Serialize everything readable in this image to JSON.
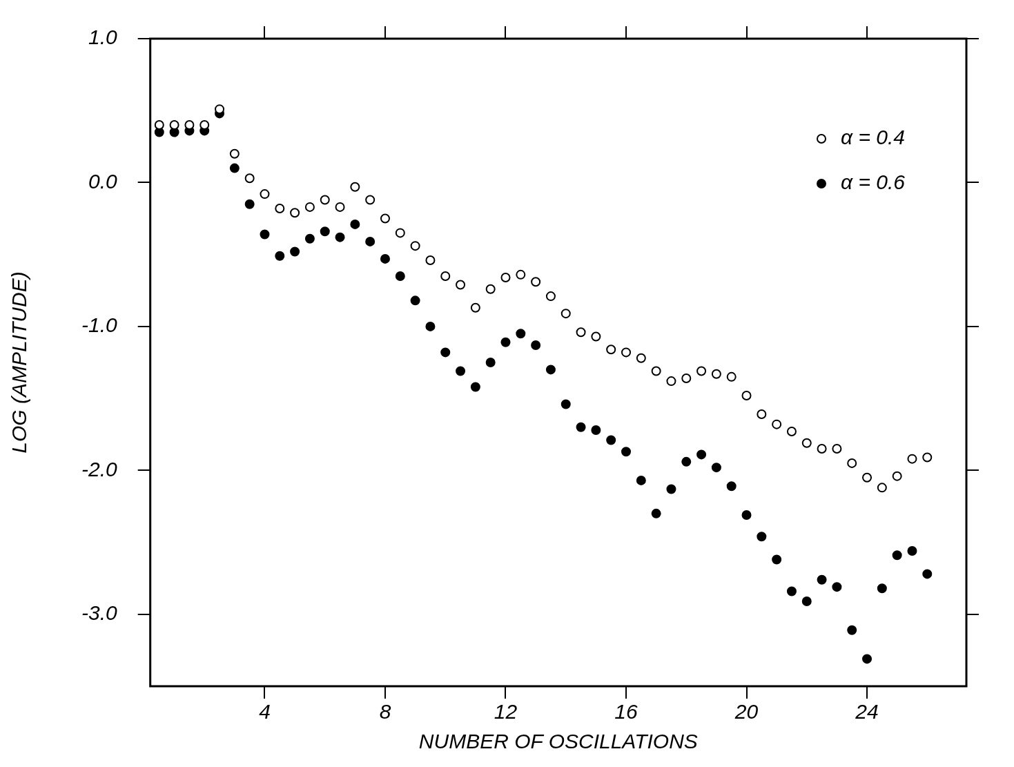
{
  "chart_data": {
    "type": "scatter",
    "xlabel": "NUMBER OF OSCILLATIONS",
    "ylabel": "LOG (AMPLITUDE)",
    "x": [
      0.5,
      1,
      1.5,
      2,
      2.5,
      3,
      3.5,
      4,
      4.5,
      5,
      5.5,
      6,
      6.5,
      7,
      7.5,
      8,
      8.5,
      9,
      9.5,
      10,
      10.5,
      11,
      11.5,
      12,
      12.5,
      13,
      13.5,
      14,
      14.5,
      15,
      15.5,
      16,
      16.5,
      17,
      17.5,
      18,
      18.5,
      19,
      19.5,
      20,
      20.5,
      21,
      21.5,
      22,
      22.5,
      23,
      23.5,
      24,
      24.5,
      25,
      25.5,
      26
    ],
    "series": [
      {
        "name": "α = 0.4",
        "color": "#000000",
        "values": [
          0.4,
          0.4,
          0.4,
          0.4,
          0.51,
          0.2,
          0.03,
          -0.08,
          -0.18,
          -0.21,
          -0.17,
          -0.12,
          -0.17,
          -0.03,
          -0.12,
          -0.25,
          -0.35,
          -0.44,
          -0.54,
          -0.65,
          -0.71,
          -0.87,
          -0.74,
          -0.66,
          -0.64,
          -0.69,
          -0.79,
          -0.91,
          -1.04,
          -1.07,
          -1.16,
          -1.18,
          -1.22,
          -1.31,
          -1.38,
          -1.36,
          -1.31,
          -1.33,
          -1.35,
          -1.48,
          -1.61,
          -1.68,
          -1.73,
          -1.81,
          -1.85,
          -1.85,
          -1.95,
          -2.05,
          -2.12,
          -2.04,
          -1.92,
          -1.91
        ]
      },
      {
        "name": "α = 0.6",
        "color": "#000000",
        "values": [
          0.35,
          0.35,
          0.36,
          0.36,
          0.48,
          0.1,
          -0.15,
          -0.36,
          -0.51,
          -0.48,
          -0.39,
          -0.34,
          -0.38,
          -0.29,
          -0.41,
          -0.53,
          -0.65,
          -0.82,
          -1.0,
          -1.18,
          -1.31,
          -1.42,
          -1.25,
          -1.11,
          -1.05,
          -1.13,
          -1.3,
          -1.54,
          -1.7,
          -1.72,
          -1.79,
          -1.87,
          -2.07,
          -2.3,
          -2.13,
          -1.94,
          -1.89,
          -1.98,
          -2.11,
          -2.31,
          -2.46,
          -2.62,
          -2.84,
          -2.91,
          -2.76,
          -2.81,
          -3.11,
          -3.31,
          -2.82,
          -2.59,
          -2.56,
          -2.72
        ]
      }
    ],
    "xlim": [
      0.2,
      27.3
    ],
    "xticks": [
      4,
      8,
      12,
      16,
      20,
      24
    ],
    "ylim": [
      -3.5,
      1.0
    ],
    "yticks": [
      {
        "value": 1,
        "label": "1.0"
      },
      {
        "value": 0,
        "label": "0.0"
      },
      {
        "value": -1,
        "label": "-1.0"
      },
      {
        "value": -2,
        "label": "-2.0"
      },
      {
        "value": -3,
        "label": "-3.0"
      }
    ],
    "grid": false,
    "legend": "top right",
    "marker": "circle"
  }
}
